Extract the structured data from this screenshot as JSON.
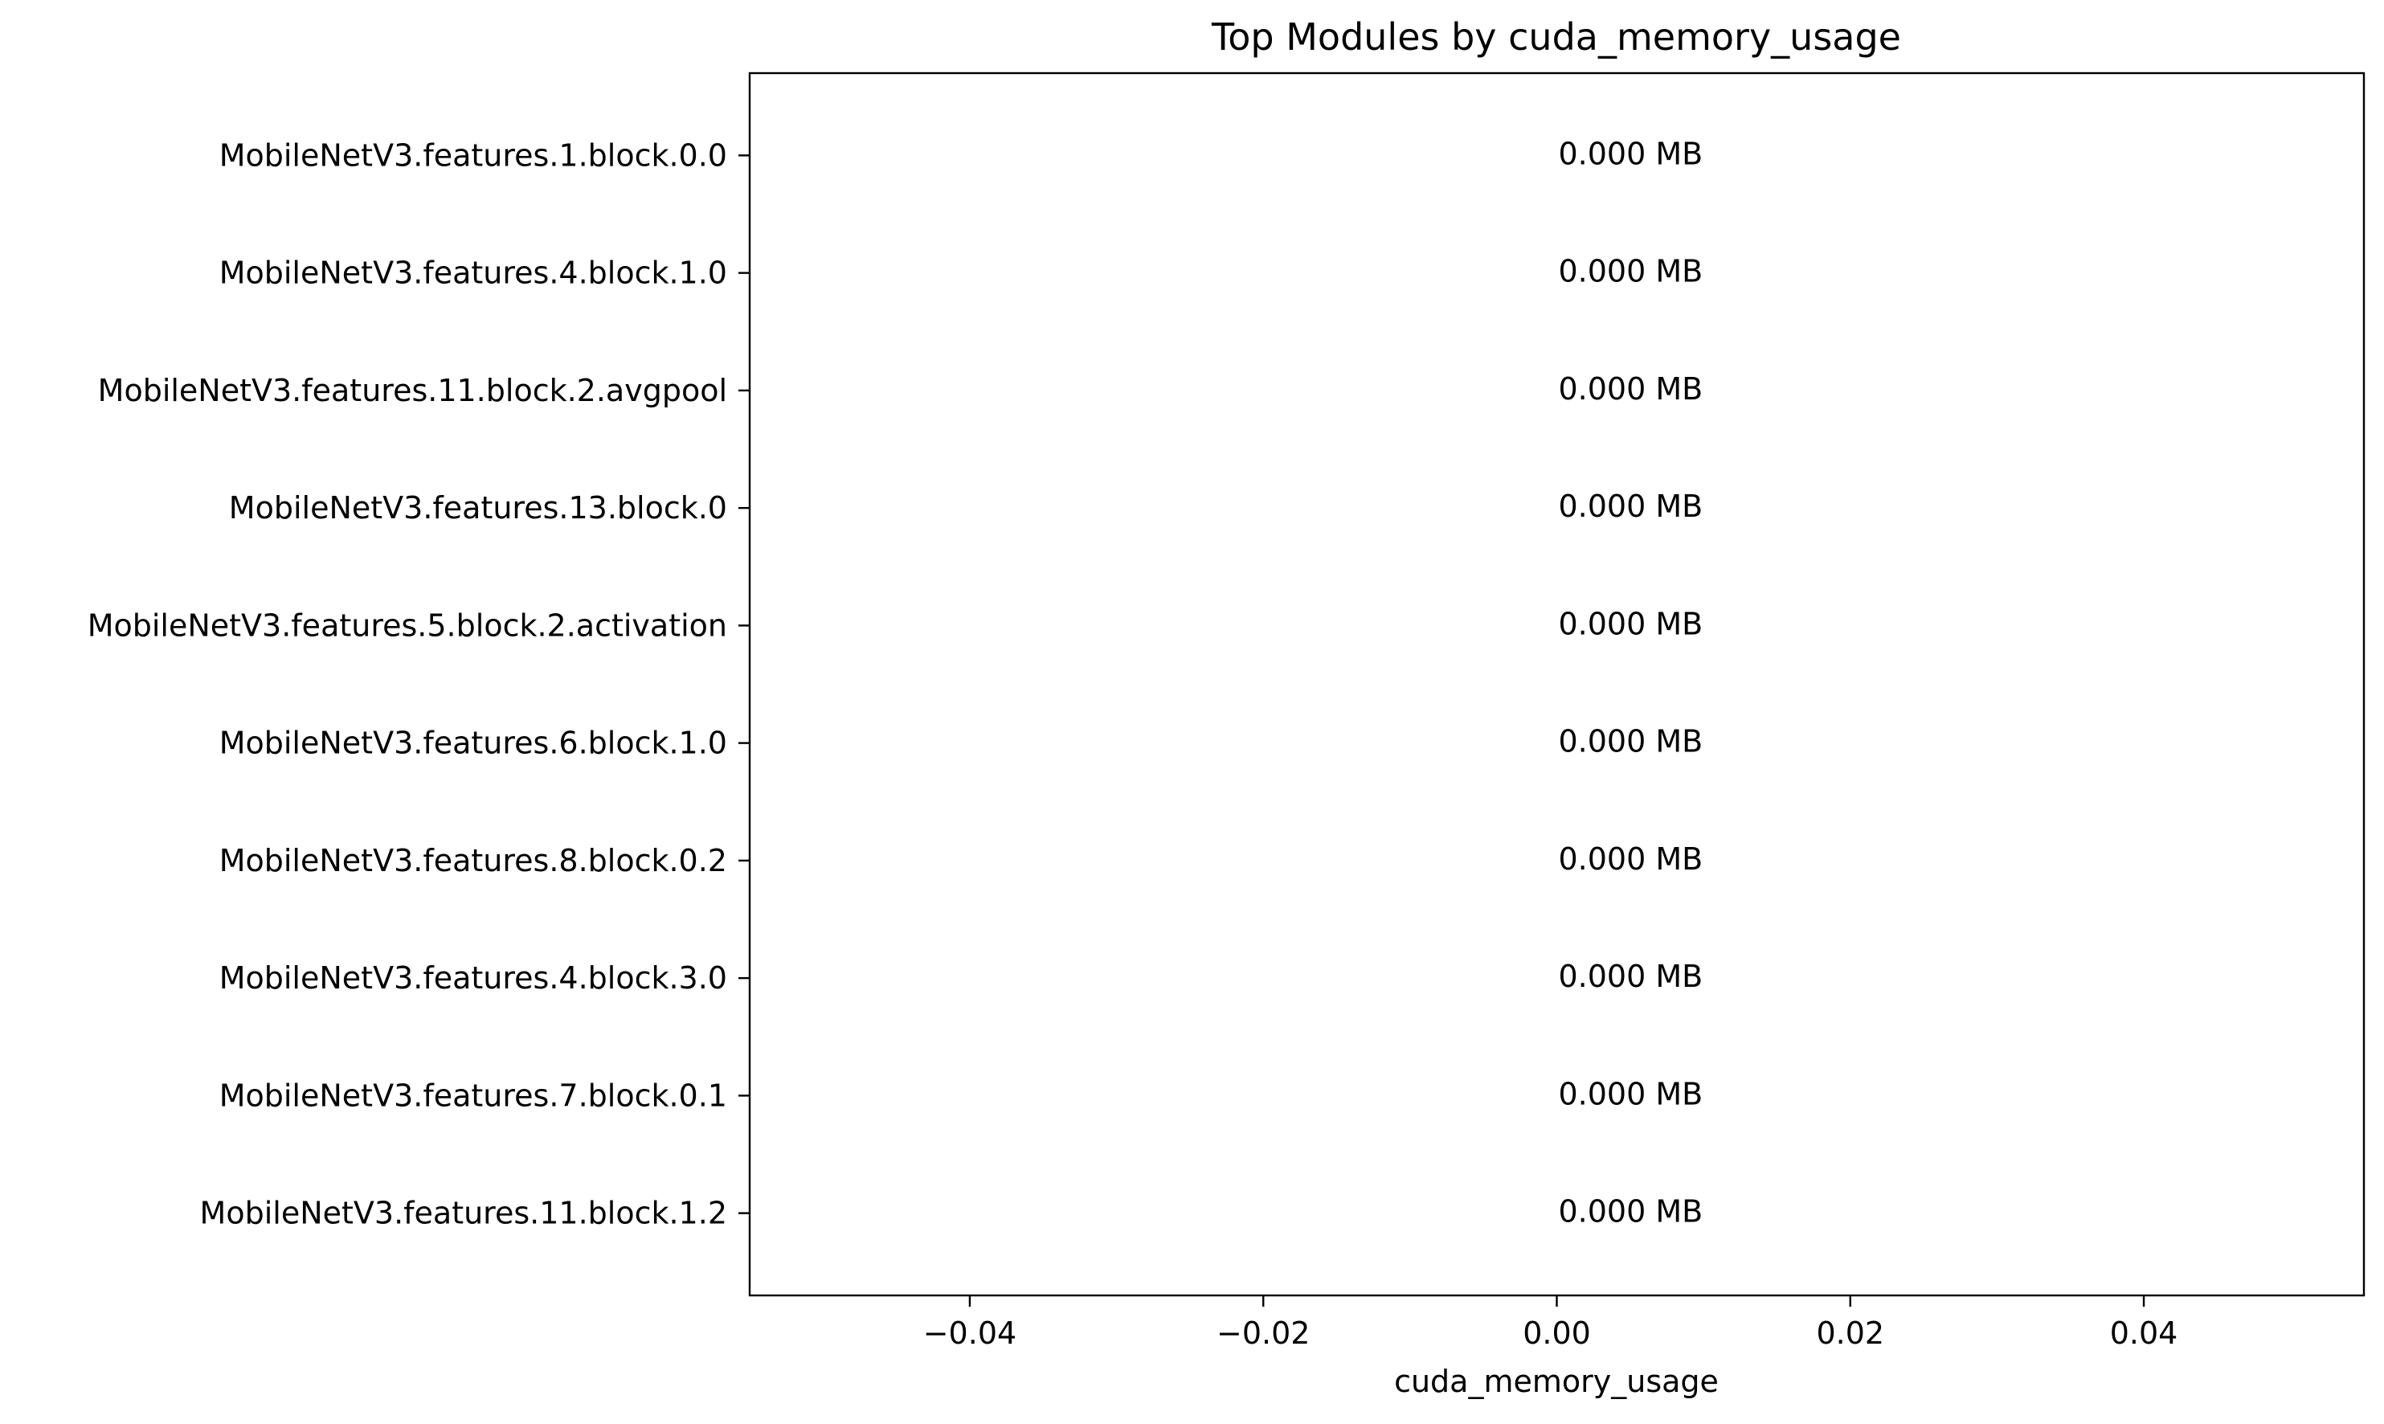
{
  "chart_data": {
    "type": "bar",
    "orientation": "horizontal",
    "title": "Top Modules by cuda_memory_usage",
    "xlabel": "cuda_memory_usage",
    "ylabel": "",
    "categories": [
      "MobileNetV3.features.1.block.0.0",
      "MobileNetV3.features.4.block.1.0",
      "MobileNetV3.features.11.block.2.avgpool",
      "MobileNetV3.features.13.block.0",
      "MobileNetV3.features.5.block.2.activation",
      "MobileNetV3.features.6.block.1.0",
      "MobileNetV3.features.8.block.0.2",
      "MobileNetV3.features.4.block.3.0",
      "MobileNetV3.features.7.block.0.1",
      "MobileNetV3.features.11.block.1.2"
    ],
    "values": [
      0,
      0,
      0,
      0,
      0,
      0,
      0,
      0,
      0,
      0
    ],
    "data_labels": [
      "0.000 MB",
      "0.000 MB",
      "0.000 MB",
      "0.000 MB",
      "0.000 MB",
      "0.000 MB",
      "0.000 MB",
      "0.000 MB",
      "0.000 MB",
      "0.000 MB"
    ],
    "xlim": [
      -0.055,
      0.055
    ],
    "xticks": [
      -0.04,
      -0.02,
      0.0,
      0.02,
      0.04
    ],
    "xtick_labels": [
      "−0.04",
      "−0.02",
      "0.00",
      "0.02",
      "0.04"
    ],
    "grid": false,
    "bar_color": "#1f77b4"
  }
}
